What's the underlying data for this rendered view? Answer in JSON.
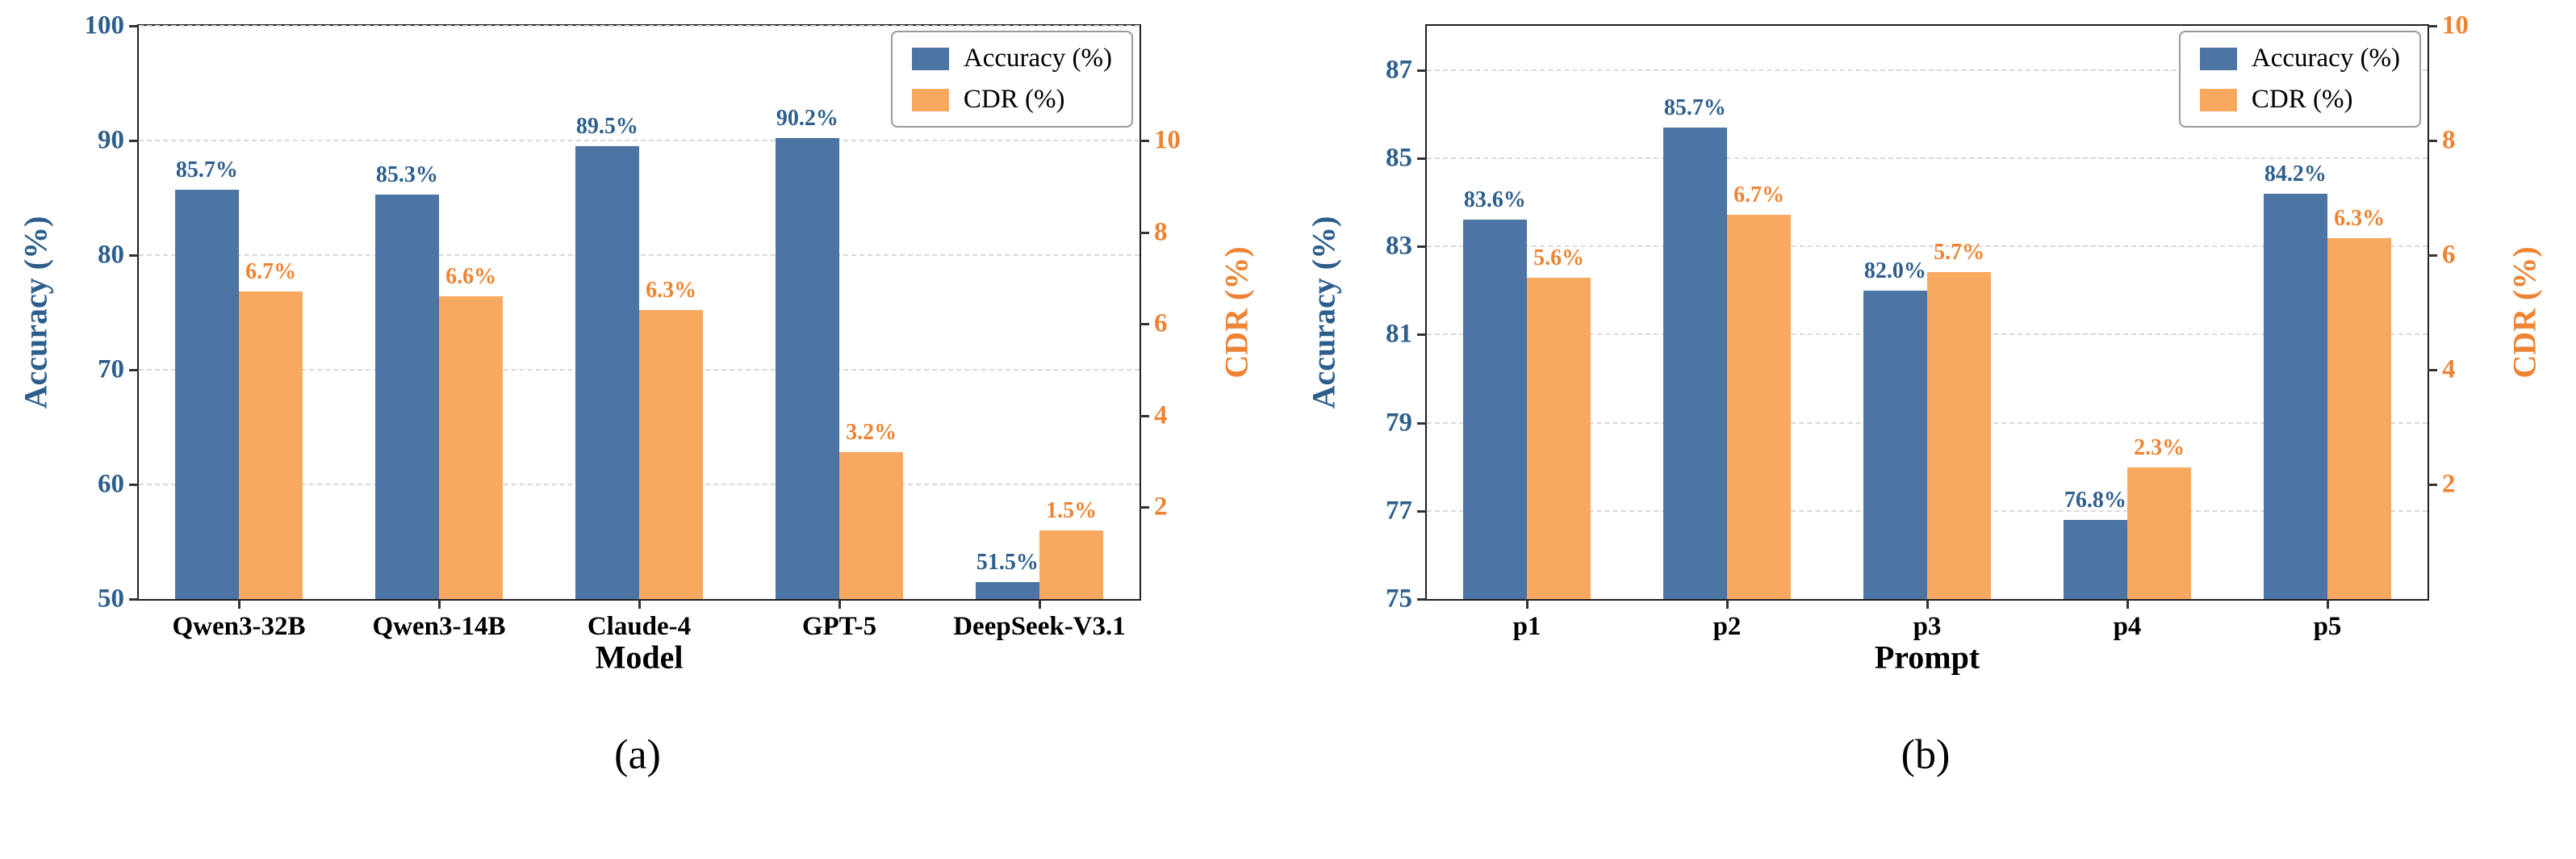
{
  "colors": {
    "accuracy_bar": "#4C74A4",
    "accuracy_text": "#2E5F8C",
    "cdr_bar": "#F9A860",
    "cdr_text": "#EE8433",
    "grid": "#D9D9D9"
  },
  "chart_data": [
    {
      "type": "bar",
      "caption": "(a)",
      "xlabel": "Model",
      "ylabel_left": "Accuracy (%)",
      "ylabel_right": "CDR (%)",
      "categories": [
        "Qwen3-32B",
        "Qwen3-14B",
        "Claude-4",
        "GPT-5",
        "DeepSeek-V3.1"
      ],
      "series": [
        {
          "name": "Accuracy (%)",
          "axis": "left",
          "values": [
            85.7,
            85.3,
            89.5,
            90.2,
            51.5
          ],
          "labels": [
            "85.7%",
            "85.3%",
            "89.5%",
            "90.2%",
            "51.5%"
          ]
        },
        {
          "name": "CDR (%)",
          "axis": "right",
          "values": [
            6.7,
            6.6,
            6.3,
            3.2,
            1.5
          ],
          "labels": [
            "6.7%",
            "6.6%",
            "6.3%",
            "3.2%",
            "1.5%"
          ]
        }
      ],
      "left_axis": {
        "min": 50,
        "max": 100,
        "ticks": [
          50,
          60,
          70,
          80,
          90,
          100
        ]
      },
      "right_axis": {
        "min": 0,
        "max": 12.5,
        "ticks": [
          2,
          4,
          6,
          8,
          10
        ]
      },
      "legend_position": "upper right",
      "grid": "dashed"
    },
    {
      "type": "bar",
      "caption": "(b)",
      "xlabel": "Prompt",
      "ylabel_left": "Accuracy (%)",
      "ylabel_right": "CDR (%)",
      "categories": [
        "p1",
        "p2",
        "p3",
        "p4",
        "p5"
      ],
      "series": [
        {
          "name": "Accuracy (%)",
          "axis": "left",
          "values": [
            83.6,
            85.7,
            82.0,
            76.8,
            84.2
          ],
          "labels": [
            "83.6%",
            "85.7%",
            "82.0%",
            "76.8%",
            "84.2%"
          ]
        },
        {
          "name": "CDR (%)",
          "axis": "right",
          "values": [
            5.6,
            6.7,
            5.7,
            2.3,
            6.3
          ],
          "labels": [
            "5.6%",
            "6.7%",
            "5.7%",
            "2.3%",
            "6.3%"
          ]
        }
      ],
      "left_axis": {
        "min": 75,
        "max": 88,
        "ticks": [
          75,
          77,
          79,
          81,
          83,
          85,
          87
        ]
      },
      "right_axis": {
        "min": 0,
        "max": 10,
        "ticks": [
          2,
          4,
          6,
          8,
          10
        ]
      },
      "legend_position": "upper right",
      "grid": "dashed"
    }
  ]
}
